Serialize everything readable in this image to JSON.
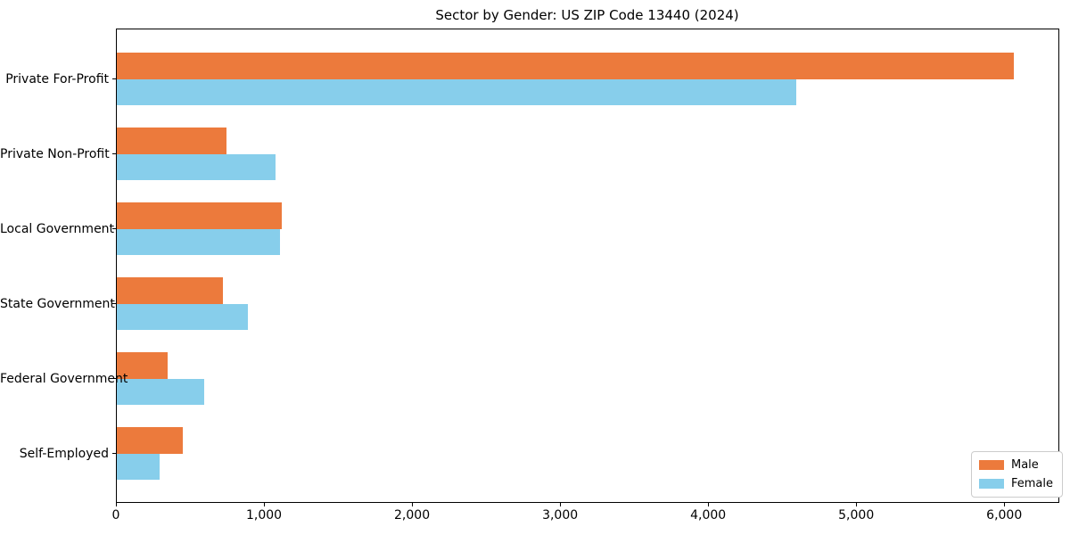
{
  "chart_data": {
    "type": "bar",
    "orientation": "horizontal",
    "title": "Sector by Gender: US ZIP Code 13440 (2024)",
    "xlabel": "",
    "ylabel": "",
    "categories": [
      "Private For-Profit",
      "Private Non-Profit",
      "Local Government",
      "State Government",
      "Federal Government",
      "Self-Employed"
    ],
    "series": [
      {
        "name": "Male",
        "color": "#EC7A3C",
        "values": [
          6057,
          740,
          1115,
          715,
          345,
          445
        ]
      },
      {
        "name": "Female",
        "color": "#87CEEB",
        "values": [
          4590,
          1070,
          1105,
          885,
          590,
          290
        ]
      }
    ],
    "xlim": [
      0,
      6360
    ],
    "x_ticks": [
      0,
      1000,
      2000,
      3000,
      4000,
      5000,
      6000
    ],
    "x_tick_labels": [
      "0",
      "1,000",
      "2,000",
      "3,000",
      "4,000",
      "5,000",
      "6,000"
    ],
    "grid": false,
    "legend_position": "lower right"
  },
  "legend": {
    "items": [
      {
        "label": "Male"
      },
      {
        "label": "Female"
      }
    ]
  }
}
